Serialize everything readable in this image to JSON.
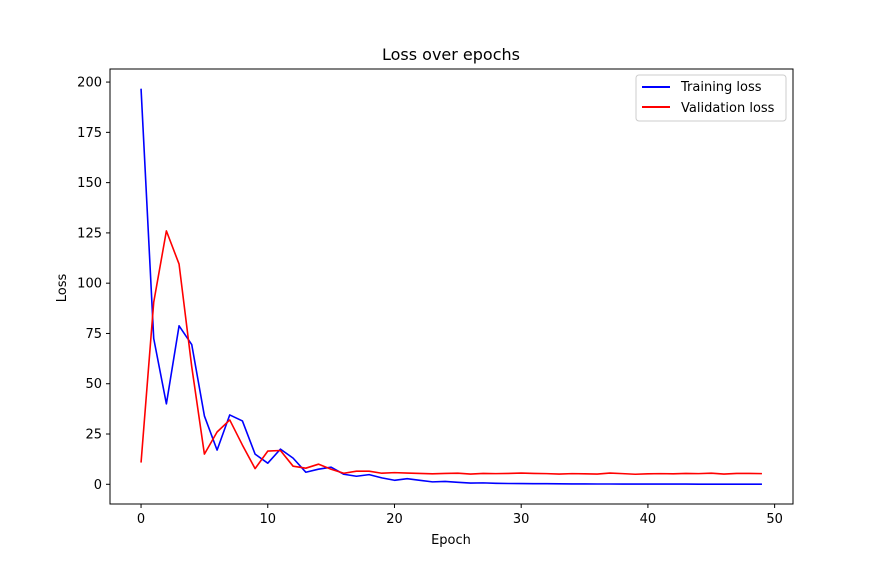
{
  "chart_data": {
    "type": "line",
    "title": "Loss over epochs",
    "xlabel": "Epoch",
    "ylabel": "Loss",
    "xlim": [
      -2.45,
      51.45
    ],
    "ylim": [
      -9.8,
      206.5
    ],
    "xticks": [
      0,
      10,
      20,
      30,
      40,
      50
    ],
    "yticks": [
      0,
      25,
      50,
      75,
      100,
      125,
      150,
      175,
      200
    ],
    "grid": false,
    "legend_position": "top-right",
    "x": [
      0,
      1,
      2,
      3,
      4,
      5,
      6,
      7,
      8,
      9,
      10,
      11,
      12,
      13,
      14,
      15,
      16,
      17,
      18,
      19,
      20,
      21,
      22,
      23,
      24,
      25,
      26,
      27,
      28,
      29,
      30,
      31,
      32,
      33,
      34,
      35,
      36,
      37,
      38,
      39,
      40,
      41,
      42,
      43,
      44,
      45,
      46,
      47,
      48,
      49
    ],
    "series": [
      {
        "name": "Training loss",
        "color": "#0000ff",
        "values": [
          196.7,
          72.5,
          40.0,
          78.8,
          69.5,
          34.0,
          17.0,
          34.5,
          31.5,
          15.0,
          10.5,
          17.5,
          13.0,
          6.0,
          7.5,
          8.5,
          5.0,
          4.0,
          4.8,
          3.2,
          2.0,
          2.8,
          2.0,
          1.2,
          1.4,
          1.0,
          0.6,
          0.7,
          0.5,
          0.4,
          0.35,
          0.3,
          0.3,
          0.25,
          0.2,
          0.2,
          0.15,
          0.15,
          0.1,
          0.1,
          0.1,
          0.1,
          0.1,
          0.1,
          0.05,
          0.05,
          0.05,
          0.05,
          0.05,
          0.05
        ]
      },
      {
        "name": "Validation loss",
        "color": "#ff0000",
        "values": [
          10.8,
          90.5,
          126.0,
          109.5,
          58.5,
          15.0,
          26.0,
          32.0,
          19.5,
          7.8,
          16.5,
          16.8,
          9.0,
          8.0,
          10.0,
          7.5,
          5.5,
          6.5,
          6.5,
          5.5,
          5.8,
          5.6,
          5.4,
          5.2,
          5.4,
          5.5,
          5.1,
          5.4,
          5.3,
          5.4,
          5.6,
          5.4,
          5.3,
          5.1,
          5.3,
          5.2,
          5.1,
          5.6,
          5.3,
          5.0,
          5.2,
          5.3,
          5.2,
          5.4,
          5.3,
          5.5,
          5.1,
          5.4,
          5.4,
          5.3
        ]
      }
    ]
  }
}
